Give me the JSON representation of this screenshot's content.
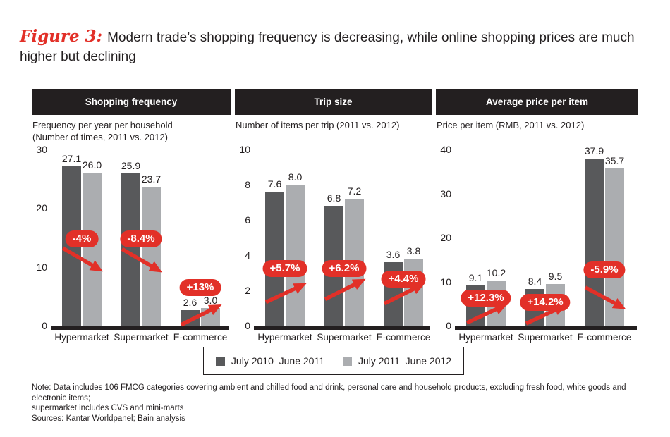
{
  "figure": {
    "label": "Figure 3:",
    "title": "Modern trade’s shopping frequency is decreasing, while online shopping prices are much higher but declining"
  },
  "colors": {
    "series1": "#58595b",
    "series2": "#abadb0",
    "accent_red": "#e23028",
    "header_black": "#231f20"
  },
  "legend": {
    "items": [
      {
        "label": "July 2010–June 2011",
        "color": "#58595b"
      },
      {
        "label": "July 2011–June 2012",
        "color": "#abadb0"
      }
    ]
  },
  "notes": {
    "note": "Note: Data includes 106 FMCG categories covering ambient and chilled food and drink, personal care and household products, excluding fresh food, white goods and electronic items;\nsupermarket includes CVS and mini-marts",
    "sources": "Sources: Kantar Worldpanel; Bain analysis"
  },
  "chart_data": [
    {
      "type": "bar",
      "panel_title": "Shopping frequency",
      "subtitle": "Frequency per year per household\n(Number of times, 2011 vs. 2012)",
      "categories": [
        "Hypermarket",
        "Supermarket",
        "E-commerce"
      ],
      "series": [
        {
          "name": "July 2010–June 2011",
          "values": [
            27.1,
            25.9,
            2.6
          ]
        },
        {
          "name": "July 2011–June 2012",
          "values": [
            26.0,
            23.7,
            3.0
          ]
        }
      ],
      "ylim": [
        0,
        30
      ],
      "yticks": [
        0,
        10,
        20,
        30
      ],
      "grid": false,
      "annotations": [
        {
          "label": "-4%",
          "direction": "down",
          "pill_y": 0.5,
          "arrow_from": 0.44,
          "arrow_to": 0.335
        },
        {
          "label": "-8.4%",
          "direction": "down",
          "pill_y": 0.5,
          "arrow_from": 0.435,
          "arrow_to": 0.33
        },
        {
          "label": "+13%",
          "direction": "up",
          "pill_y": 0.225,
          "arrow_from": 0.005,
          "arrow_to": 0.095
        }
      ]
    },
    {
      "type": "bar",
      "panel_title": "Trip size",
      "subtitle": "Number of items per trip (2011 vs. 2012)",
      "categories": [
        "Hypermarket",
        "Supermarket",
        "E-commerce"
      ],
      "series": [
        {
          "name": "July 2010–June 2011",
          "values": [
            7.6,
            6.8,
            3.6
          ]
        },
        {
          "name": "July 2011–June 2012",
          "values": [
            8.0,
            7.2,
            3.8
          ]
        }
      ],
      "ylim": [
        0,
        10
      ],
      "yticks": [
        0,
        2,
        4,
        6,
        8,
        10
      ],
      "grid": false,
      "annotations": [
        {
          "label": "+5.7%",
          "direction": "up",
          "pill_y": 0.333,
          "arrow_from": 0.133,
          "arrow_to": 0.217
        },
        {
          "label": "+6.2%",
          "direction": "up",
          "pill_y": 0.333,
          "arrow_from": 0.15,
          "arrow_to": 0.24
        },
        {
          "label": "+4.4%",
          "direction": "up",
          "pill_y": 0.273,
          "arrow_from": 0.125,
          "arrow_to": 0.215
        }
      ]
    },
    {
      "type": "bar",
      "panel_title": "Average price per item",
      "subtitle": "Price per item (RMB, 2011 vs. 2012)",
      "categories": [
        "Hypermarket",
        "Supermarket",
        "E-commerce"
      ],
      "series": [
        {
          "name": "July 2010–June 2011",
          "values": [
            9.1,
            8.4,
            37.9
          ]
        },
        {
          "name": "July 2011–June 2012",
          "values": [
            10.2,
            9.5,
            35.7
          ]
        }
      ],
      "ylim": [
        0,
        40
      ],
      "yticks": [
        0,
        10,
        20,
        30,
        40
      ],
      "grid": false,
      "annotations": [
        {
          "label": "+12.3%",
          "direction": "up",
          "pill_y": 0.165,
          "arrow_from": 0.016,
          "arrow_to": 0.1
        },
        {
          "label": "+14.2%",
          "direction": "up",
          "pill_y": 0.14,
          "arrow_from": 0.012,
          "arrow_to": 0.096
        },
        {
          "label": "-5.9%",
          "direction": "down",
          "pill_y": 0.325,
          "arrow_from": 0.217,
          "arrow_to": 0.12
        }
      ]
    }
  ]
}
